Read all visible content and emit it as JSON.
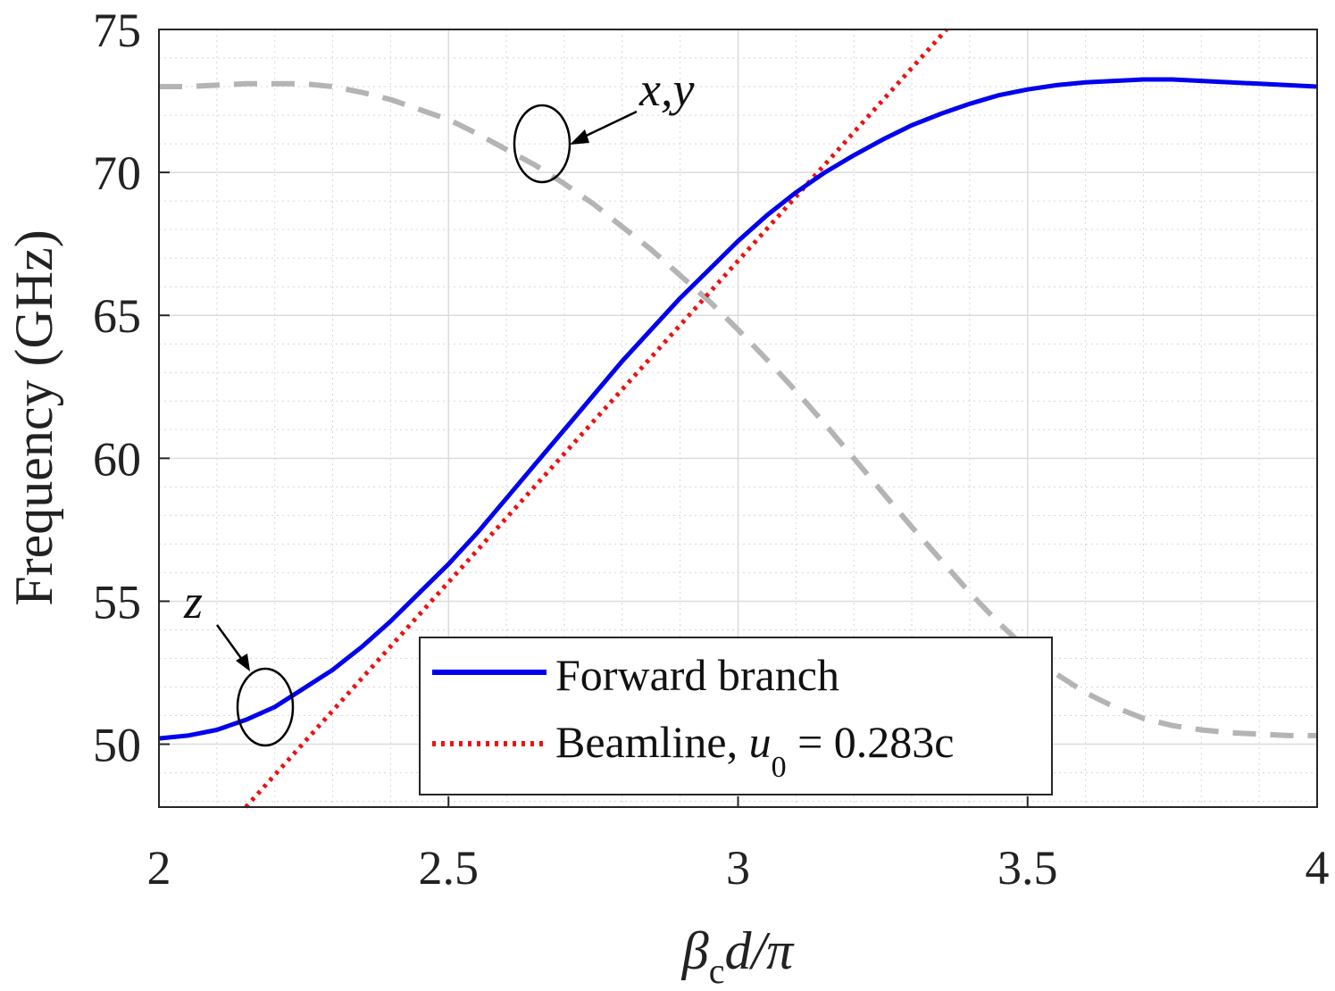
{
  "chart_data": {
    "type": "line",
    "xlabel": {
      "beta": "β",
      "sub": "c",
      "rest": "d/π"
    },
    "ylabel": "Frequency (GHz)",
    "xlim": [
      2,
      4
    ],
    "ylim": [
      47.8,
      75
    ],
    "xticks": [
      "2",
      "2.5",
      "3",
      "3.5",
      "4"
    ],
    "xtick_values": [
      2,
      2.5,
      3,
      3.5,
      4
    ],
    "yticks": [
      "50",
      "55",
      "60",
      "65",
      "70",
      "75"
    ],
    "ytick_values": [
      50,
      55,
      60,
      65,
      70,
      75
    ],
    "grid": true,
    "minor_grid": true,
    "legend_position": "bottom-center",
    "series": [
      {
        "name": "Forward branch",
        "style": "solid",
        "color": "#0000ee",
        "x": [
          2.0,
          2.05,
          2.1,
          2.15,
          2.2,
          2.25,
          2.3,
          2.35,
          2.4,
          2.45,
          2.5,
          2.55,
          2.6,
          2.65,
          2.7,
          2.75,
          2.8,
          2.85,
          2.9,
          2.95,
          3.0,
          3.05,
          3.1,
          3.15,
          3.2,
          3.25,
          3.3,
          3.35,
          3.4,
          3.45,
          3.5,
          3.55,
          3.6,
          3.65,
          3.7,
          3.75,
          3.8,
          3.85,
          3.9,
          3.95,
          4.0
        ],
        "y": [
          50.2,
          50.3,
          50.5,
          50.85,
          51.3,
          51.95,
          52.6,
          53.4,
          54.3,
          55.3,
          56.3,
          57.4,
          58.6,
          59.8,
          61.0,
          62.2,
          63.4,
          64.5,
          65.6,
          66.6,
          67.6,
          68.5,
          69.3,
          70.0,
          70.6,
          71.15,
          71.65,
          72.05,
          72.4,
          72.7,
          72.9,
          73.05,
          73.15,
          73.2,
          73.25,
          73.25,
          73.2,
          73.15,
          73.1,
          73.05,
          73.0
        ]
      },
      {
        "name": "Beamline, ",
        "name_math": {
          "u": "u",
          "sub": "0",
          "rest": " = 0.283c"
        },
        "style": "dotted",
        "color": "#ee1111",
        "x": [
          2.15,
          3.36
        ],
        "y": [
          47.8,
          75.0
        ]
      },
      {
        "name": "",
        "style": "dashed",
        "color": "#b4b4b4",
        "x": [
          2.0,
          2.05,
          2.1,
          2.15,
          2.2,
          2.25,
          2.3,
          2.35,
          2.4,
          2.45,
          2.5,
          2.55,
          2.6,
          2.65,
          2.7,
          2.75,
          2.8,
          2.85,
          2.9,
          2.95,
          3.0,
          3.05,
          3.1,
          3.15,
          3.2,
          3.25,
          3.3,
          3.35,
          3.4,
          3.45,
          3.5,
          3.55,
          3.6,
          3.65,
          3.7,
          3.75,
          3.8,
          3.85,
          3.9,
          3.95,
          4.0
        ],
        "y": [
          73.0,
          73.0,
          73.05,
          73.1,
          73.1,
          73.1,
          73.0,
          72.8,
          72.55,
          72.2,
          71.85,
          71.35,
          70.8,
          70.25,
          69.6,
          68.9,
          68.1,
          67.3,
          66.4,
          65.5,
          64.5,
          63.45,
          62.35,
          61.2,
          60.0,
          58.8,
          57.6,
          56.45,
          55.3,
          54.25,
          53.3,
          52.45,
          51.8,
          51.3,
          50.9,
          50.65,
          50.5,
          50.4,
          50.35,
          50.3,
          50.3
        ]
      }
    ],
    "annotations": [
      {
        "text": "x,y",
        "target": "dashed",
        "at_x": 2.67,
        "at_y": 71.0
      },
      {
        "text": "z",
        "target": "Forward branch",
        "at_x": 2.19,
        "at_y": 51.2
      }
    ]
  }
}
